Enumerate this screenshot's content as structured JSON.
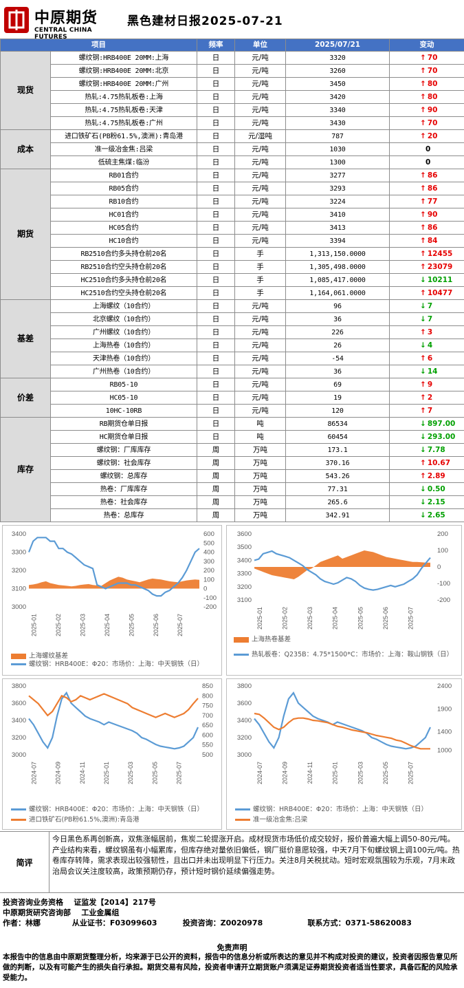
{
  "header": {
    "logo_cn": "中原期货",
    "logo_en": "CENTRAL CHINA FUTURES",
    "title": "黑色建材日报2025-07-21"
  },
  "table": {
    "headers": [
      "项目",
      "频率",
      "单位",
      "2025/07/21",
      "变动"
    ],
    "groups": [
      {
        "category": "现货",
        "rows": [
          {
            "item": "螺纹钢:HRB400E 20MM:上海",
            "freq": "日",
            "unit": "元/吨",
            "value": "3320",
            "dir": "up",
            "change": "70"
          },
          {
            "item": "螺纹钢:HRB400E 20MM:北京",
            "freq": "日",
            "unit": "元/吨",
            "value": "3260",
            "dir": "up",
            "change": "70"
          },
          {
            "item": "螺纹钢:HRB400E 20MM:广州",
            "freq": "日",
            "unit": "元/吨",
            "value": "3450",
            "dir": "up",
            "change": "80"
          },
          {
            "item": "热轧:4.75热轧板卷:上海",
            "freq": "日",
            "unit": "元/吨",
            "value": "3420",
            "dir": "up",
            "change": "80"
          },
          {
            "item": "热轧:4.75热轧板卷:天津",
            "freq": "日",
            "unit": "元/吨",
            "value": "3340",
            "dir": "up",
            "change": "90"
          },
          {
            "item": "热轧:4.75热轧板卷:广州",
            "freq": "日",
            "unit": "元/吨",
            "value": "3430",
            "dir": "up",
            "change": "70"
          }
        ]
      },
      {
        "category": "成本",
        "rows": [
          {
            "item": "进口铁矿石(PB粉61.5%,澳洲):青岛港",
            "freq": "日",
            "unit": "元/湿吨",
            "value": "787",
            "dir": "up",
            "change": "20"
          },
          {
            "item": "准一级冶金焦:吕梁",
            "freq": "日",
            "unit": "元/吨",
            "value": "1030",
            "dir": "none",
            "change": "0"
          },
          {
            "item": "低硫主焦煤:临汾",
            "freq": "日",
            "unit": "元/吨",
            "value": "1300",
            "dir": "none",
            "change": "0"
          }
        ]
      },
      {
        "category": "期货",
        "rows": [
          {
            "item": "RB01合约",
            "freq": "日",
            "unit": "元/吨",
            "value": "3277",
            "dir": "up",
            "change": "86"
          },
          {
            "item": "RB05合约",
            "freq": "日",
            "unit": "元/吨",
            "value": "3293",
            "dir": "up",
            "change": "86"
          },
          {
            "item": "RB10合约",
            "freq": "日",
            "unit": "元/吨",
            "value": "3224",
            "dir": "up",
            "change": "77"
          },
          {
            "item": "HC01合约",
            "freq": "日",
            "unit": "元/吨",
            "value": "3410",
            "dir": "up",
            "change": "90"
          },
          {
            "item": "HC05合约",
            "freq": "日",
            "unit": "元/吨",
            "value": "3413",
            "dir": "up",
            "change": "86"
          },
          {
            "item": "HC10合约",
            "freq": "日",
            "unit": "元/吨",
            "value": "3394",
            "dir": "up",
            "change": "84"
          },
          {
            "item": "RB2510合约多头持仓前20名",
            "freq": "日",
            "unit": "手",
            "value": "1,313,150.0000",
            "dir": "up",
            "change": "12455"
          },
          {
            "item": "RB2510合约空头持仓前20名",
            "freq": "日",
            "unit": "手",
            "value": "1,305,498.0000",
            "dir": "up",
            "change": "23079"
          },
          {
            "item": "HC2510合约多头持仓前20名",
            "freq": "日",
            "unit": "手",
            "value": "1,085,417.0000",
            "dir": "down",
            "change": "10211"
          },
          {
            "item": "HC2510合约空头持仓前20名",
            "freq": "日",
            "unit": "手",
            "value": "1,164,061.0000",
            "dir": "up",
            "change": "10477"
          }
        ]
      },
      {
        "category": "基差",
        "rows": [
          {
            "item": "上海螺纹（10合约）",
            "freq": "日",
            "unit": "元/吨",
            "value": "96",
            "dir": "down",
            "change": "7"
          },
          {
            "item": "北京螺纹（10合约）",
            "freq": "日",
            "unit": "元/吨",
            "value": "36",
            "dir": "down",
            "change": "7"
          },
          {
            "item": "广州螺纹（10合约）",
            "freq": "日",
            "unit": "元/吨",
            "value": "226",
            "dir": "up",
            "change": "3"
          },
          {
            "item": "上海热卷（10合约）",
            "freq": "日",
            "unit": "元/吨",
            "value": "26",
            "dir": "down",
            "change": "4"
          },
          {
            "item": "天津热卷（10合约）",
            "freq": "日",
            "unit": "元/吨",
            "value": "-54",
            "dir": "up",
            "change": "6"
          },
          {
            "item": "广州热卷（10合约）",
            "freq": "日",
            "unit": "元/吨",
            "value": "36",
            "dir": "down",
            "change": "14"
          }
        ]
      },
      {
        "category": "价差",
        "rows": [
          {
            "item": "RB05-10",
            "freq": "日",
            "unit": "元/吨",
            "value": "69",
            "dir": "up",
            "change": "9"
          },
          {
            "item": "HC05-10",
            "freq": "日",
            "unit": "元/吨",
            "value": "19",
            "dir": "up",
            "change": "2"
          },
          {
            "item": "10HC-10RB",
            "freq": "日",
            "unit": "元/吨",
            "value": "120",
            "dir": "up",
            "change": "7"
          }
        ]
      },
      {
        "category": "库存",
        "rows": [
          {
            "item": "RB期货仓单日报",
            "freq": "日",
            "unit": "吨",
            "value": "86534",
            "dir": "down",
            "change": "897.00"
          },
          {
            "item": "HC期货仓单日报",
            "freq": "日",
            "unit": "吨",
            "value": "60454",
            "dir": "down",
            "change": "293.00"
          },
          {
            "item": "螺纹钢：厂库库存",
            "freq": "周",
            "unit": "万吨",
            "value": "173.1",
            "dir": "down",
            "change": "7.78"
          },
          {
            "item": "螺纹钢：社会库存",
            "freq": "周",
            "unit": "万吨",
            "value": "370.16",
            "dir": "up",
            "change": "10.67"
          },
          {
            "item": "螺纹钢：总库存",
            "freq": "周",
            "unit": "万吨",
            "value": "543.26",
            "dir": "up",
            "change": "2.89"
          },
          {
            "item": "热卷：厂库库存",
            "freq": "周",
            "unit": "万吨",
            "value": "77.31",
            "dir": "down",
            "change": "0.50"
          },
          {
            "item": "热卷：社会库存",
            "freq": "周",
            "unit": "万吨",
            "value": "265.6",
            "dir": "down",
            "change": "2.15"
          },
          {
            "item": "热卷：总库存",
            "freq": "周",
            "unit": "万吨",
            "value": "342.91",
            "dir": "down",
            "change": "2.65"
          }
        ]
      }
    ]
  },
  "colors": {
    "blue": "#5b9bd5",
    "orange": "#ed7d31",
    "up": "#e60000",
    "down": "#00a000",
    "header_bg": "#4472c4"
  },
  "chart_data": [
    {
      "type": "line",
      "x_ticks": [
        "2025-01",
        "2025-02",
        "2025-03",
        "2025-04",
        "2025-05",
        "2025-06",
        "2025-07"
      ],
      "ylim_left": [
        3000,
        3400
      ],
      "yticks_left": [
        3000,
        3100,
        3200,
        3300,
        3400
      ],
      "ylim_right": [
        -200,
        600
      ],
      "yticks_right": [
        -200,
        -100,
        0,
        100,
        200,
        300,
        400,
        500,
        600
      ],
      "series": [
        {
          "name": "上海螺纹基差",
          "kind": "area",
          "axis": "right",
          "color": "#ed7d31",
          "values": [
            40,
            45,
            55,
            70,
            80,
            60,
            50,
            40,
            35,
            30,
            25,
            30,
            40,
            45,
            50,
            40,
            35,
            30,
            60,
            90,
            110,
            130,
            120,
            100,
            90,
            80,
            70,
            85,
            100,
            110,
            105,
            100,
            90,
            80,
            75,
            70,
            80,
            90,
            95,
            100,
            96
          ]
        },
        {
          "name": "螺纹钢：HRB400E：Φ20：市场价：上海：中天钢铁（日）",
          "kind": "line",
          "axis": "left",
          "color": "#5b9bd5",
          "values": [
            3300,
            3360,
            3380,
            3380,
            3380,
            3360,
            3360,
            3320,
            3320,
            3300,
            3290,
            3270,
            3250,
            3230,
            3220,
            3210,
            3120,
            3110,
            3100,
            3110,
            3120,
            3130,
            3130,
            3130,
            3120,
            3120,
            3110,
            3100,
            3090,
            3070,
            3060,
            3060,
            3080,
            3090,
            3110,
            3130,
            3160,
            3200,
            3250,
            3300,
            3320
          ]
        }
      ]
    },
    {
      "type": "line",
      "x_ticks": [
        "2025-01",
        "2025-02",
        "2025-03",
        "2025-04",
        "2025-05",
        "2025-06",
        "2025-07"
      ],
      "ylim_left": [
        3100,
        3600
      ],
      "yticks_left": [
        3100,
        3200,
        3300,
        3400,
        3500,
        3600
      ],
      "ylim_right": [
        -200,
        200
      ],
      "yticks_right": [
        -200,
        -100,
        0,
        100,
        200
      ],
      "series": [
        {
          "name": "上海热卷基差",
          "kind": "area",
          "axis": "right",
          "color": "#ed7d31",
          "values": [
            -10,
            -20,
            -30,
            -40,
            -50,
            -55,
            -60,
            -65,
            -70,
            -75,
            -60,
            -40,
            -20,
            -10,
            10,
            30,
            40,
            50,
            60,
            70,
            50,
            60,
            70,
            80,
            90,
            100,
            95,
            90,
            80,
            70,
            60,
            55,
            50,
            45,
            40,
            35,
            30,
            30,
            28,
            26,
            26
          ]
        },
        {
          "name": "热轧板卷：Q235B：4.75*1500*C：市场价：上海：鞍山钢铁（日）",
          "kind": "line",
          "axis": "left",
          "color": "#5b9bd5",
          "values": [
            3400,
            3410,
            3450,
            3460,
            3470,
            3450,
            3440,
            3430,
            3420,
            3400,
            3380,
            3360,
            3330,
            3310,
            3290,
            3260,
            3240,
            3230,
            3220,
            3230,
            3250,
            3270,
            3260,
            3240,
            3210,
            3190,
            3180,
            3175,
            3180,
            3190,
            3200,
            3210,
            3200,
            3210,
            3220,
            3240,
            3260,
            3290,
            3340,
            3380,
            3420
          ]
        }
      ]
    },
    {
      "type": "line",
      "x_ticks": [
        "2024-07",
        "2024-09",
        "2024-11",
        "2025-01",
        "2025-03",
        "2025-05",
        "2025-07"
      ],
      "ylim_left": [
        3000,
        3800
      ],
      "yticks_left": [
        3000,
        3200,
        3400,
        3600,
        3800
      ],
      "ylim_right": [
        500,
        850
      ],
      "yticks_right": [
        500,
        550,
        600,
        650,
        700,
        750,
        800,
        850
      ],
      "series": [
        {
          "name": "螺纹钢：HRB400E：Φ20：市场价：上海：中天钢铁（日）",
          "kind": "line",
          "axis": "left",
          "color": "#5b9bd5",
          "values": [
            3420,
            3350,
            3250,
            3150,
            3080,
            3200,
            3450,
            3650,
            3720,
            3600,
            3550,
            3500,
            3450,
            3420,
            3400,
            3380,
            3350,
            3380,
            3360,
            3340,
            3320,
            3300,
            3280,
            3250,
            3200,
            3180,
            3150,
            3120,
            3100,
            3090,
            3080,
            3070,
            3080,
            3100,
            3150,
            3200,
            3320
          ]
        },
        {
          "name": "进口铁矿石(PB粉61.5%,澳洲):青岛港",
          "kind": "line",
          "axis": "right",
          "color": "#ed7d31",
          "values": [
            800,
            780,
            760,
            730,
            700,
            720,
            760,
            800,
            790,
            770,
            780,
            800,
            790,
            780,
            790,
            800,
            810,
            800,
            790,
            780,
            770,
            760,
            740,
            730,
            720,
            710,
            700,
            690,
            700,
            710,
            700,
            690,
            700,
            710,
            730,
            760,
            787
          ]
        }
      ]
    },
    {
      "type": "line",
      "x_ticks": [
        "2024-07",
        "2024-09",
        "2024-11",
        "2025-01",
        "2025-03",
        "2025-05",
        "2025-07"
      ],
      "ylim_left": [
        3000,
        3800
      ],
      "yticks_left": [
        3000,
        3200,
        3400,
        3600,
        3800
      ],
      "ylim_right": [
        900,
        2400
      ],
      "yticks_right": [
        1000,
        1400,
        1900,
        2400
      ],
      "series": [
        {
          "name": "螺纹钢：HRB400E：Φ20：市场价：上海：中天钢铁（日）",
          "kind": "line",
          "axis": "left",
          "color": "#5b9bd5",
          "values": [
            3420,
            3350,
            3250,
            3150,
            3080,
            3200,
            3450,
            3650,
            3720,
            3600,
            3550,
            3500,
            3450,
            3420,
            3400,
            3380,
            3350,
            3380,
            3360,
            3340,
            3320,
            3300,
            3280,
            3250,
            3200,
            3180,
            3150,
            3120,
            3100,
            3090,
            3080,
            3070,
            3080,
            3100,
            3150,
            3200,
            3320
          ]
        },
        {
          "name": "准一级冶金焦:吕梁",
          "kind": "line",
          "axis": "right",
          "color": "#ed7d31",
          "values": [
            1800,
            1780,
            1700,
            1600,
            1500,
            1450,
            1500,
            1600,
            1680,
            1700,
            1700,
            1680,
            1650,
            1640,
            1620,
            1600,
            1560,
            1520,
            1500,
            1470,
            1440,
            1420,
            1400,
            1380,
            1350,
            1320,
            1300,
            1280,
            1260,
            1220,
            1200,
            1150,
            1100,
            1060,
            1030,
            1030,
            1030
          ]
        }
      ]
    }
  ],
  "comment": {
    "label": "简评",
    "text": "今日黑色系再创新高，双焦涨幅居前，焦炭二轮提涨开启。成材现货市场低价成交较好，报价普遍大幅上调50-80元/吨。产业结构来看，螺纹钢虽有小幅累库，但库存绝对量依旧偏低，钢厂挺价意愿较强，中天7月下旬螺纹钢上调100元/吨。热卷库存转降，需求表现出较强韧性，且出口并未出现明显下行压力。关注8月关税扰动。短时宏观氛围较为乐观，7月末政治局会议关注度较高，政策预期仍存，预计短时钢价延续偏强走势。"
  },
  "footer": {
    "line1a": "投资咨询业务资格",
    "line1b": "证监发【2014】217号",
    "line2a": "中原期货研究咨询部",
    "line2b": "工业金属组",
    "author": "作者：林娜",
    "cert": "从业证书：F03099603",
    "consult": "投资咨询：Z0020978",
    "contact": "联系方式：0371-58620083"
  },
  "disclaimer": {
    "title": "免责声明",
    "text": "本报告中的信息由中原期货整理分析，均来源于已公开的资料，报告中的信息分析或所表达的意见并不构成对投资的建议，投资者因报告意见所做的判断，以及有可能产生的损失自行承担。期货交易有风险，投资者申请开立期货账户须满足证券期货投资者适当性要求，具备匹配的风险承受能力。"
  }
}
